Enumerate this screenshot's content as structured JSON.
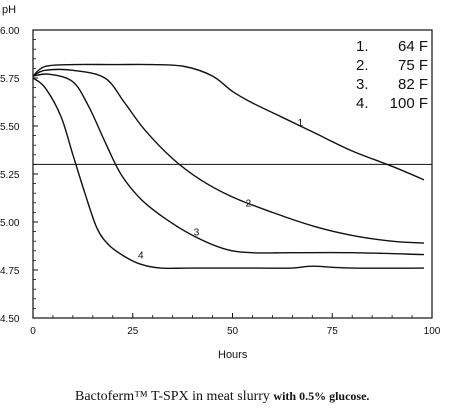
{
  "chart_data": {
    "type": "line",
    "ylabel": "pH",
    "xlabel": "Hours",
    "xlim": [
      0,
      100
    ],
    "ylim": [
      4.5,
      6.0
    ],
    "xticks": [
      "0",
      "25",
      "50",
      "75",
      "100"
    ],
    "yticks": [
      "6.00",
      "5.75",
      "5.50",
      "5.25",
      "5.00",
      "4.75",
      "4.50"
    ],
    "grid": false,
    "legend_placement": "top-right",
    "legend": [
      {
        "num": "1.",
        "label": "64 F"
      },
      {
        "num": "2.",
        "label": "75 F"
      },
      {
        "num": "3.",
        "label": "82 F"
      },
      {
        "num": "4.",
        "label": "100 F"
      }
    ],
    "reference_line": {
      "y": 5.3
    },
    "series": [
      {
        "name": "1",
        "points": [
          [
            0,
            5.76
          ],
          [
            3,
            5.81
          ],
          [
            10,
            5.82
          ],
          [
            20,
            5.82
          ],
          [
            30,
            5.82
          ],
          [
            38,
            5.81
          ],
          [
            45,
            5.76
          ],
          [
            50,
            5.68
          ],
          [
            55,
            5.62
          ],
          [
            62,
            5.55
          ],
          [
            70,
            5.47
          ],
          [
            80,
            5.37
          ],
          [
            90,
            5.29
          ],
          [
            98,
            5.22
          ]
        ]
      },
      {
        "name": "2",
        "points": [
          [
            0,
            5.76
          ],
          [
            3,
            5.79
          ],
          [
            10,
            5.79
          ],
          [
            18,
            5.75
          ],
          [
            23,
            5.62
          ],
          [
            28,
            5.48
          ],
          [
            35,
            5.33
          ],
          [
            42,
            5.22
          ],
          [
            50,
            5.13
          ],
          [
            60,
            5.05
          ],
          [
            70,
            4.98
          ],
          [
            80,
            4.93
          ],
          [
            90,
            4.9
          ],
          [
            98,
            4.89
          ]
        ]
      },
      {
        "name": "3",
        "points": [
          [
            0,
            5.76
          ],
          [
            4,
            5.77
          ],
          [
            10,
            5.73
          ],
          [
            14,
            5.6
          ],
          [
            18,
            5.42
          ],
          [
            22,
            5.25
          ],
          [
            27,
            5.12
          ],
          [
            33,
            5.02
          ],
          [
            40,
            4.93
          ],
          [
            48,
            4.86
          ],
          [
            55,
            4.84
          ],
          [
            65,
            4.84
          ],
          [
            80,
            4.84
          ],
          [
            98,
            4.83
          ]
        ]
      },
      {
        "name": "4",
        "points": [
          [
            0,
            5.75
          ],
          [
            3,
            5.7
          ],
          [
            7,
            5.55
          ],
          [
            10,
            5.35
          ],
          [
            13,
            5.15
          ],
          [
            16,
            4.97
          ],
          [
            19,
            4.88
          ],
          [
            23,
            4.82
          ],
          [
            27,
            4.78
          ],
          [
            32,
            4.76
          ],
          [
            40,
            4.76
          ],
          [
            55,
            4.76
          ],
          [
            65,
            4.76
          ],
          [
            70,
            4.77
          ],
          [
            80,
            4.76
          ],
          [
            98,
            4.76
          ]
        ]
      }
    ],
    "curve_labels": [
      {
        "text": "1",
        "x": 67,
        "y": 5.5
      },
      {
        "text": "2",
        "x": 54,
        "y": 5.08
      },
      {
        "text": "3",
        "x": 41,
        "y": 4.93
      },
      {
        "text": "4",
        "x": 27,
        "y": 4.81
      }
    ]
  },
  "caption": {
    "title": "Bactoferm™ T-SPX in meat slurry",
    "suffix": "with 0.5% glucose."
  }
}
